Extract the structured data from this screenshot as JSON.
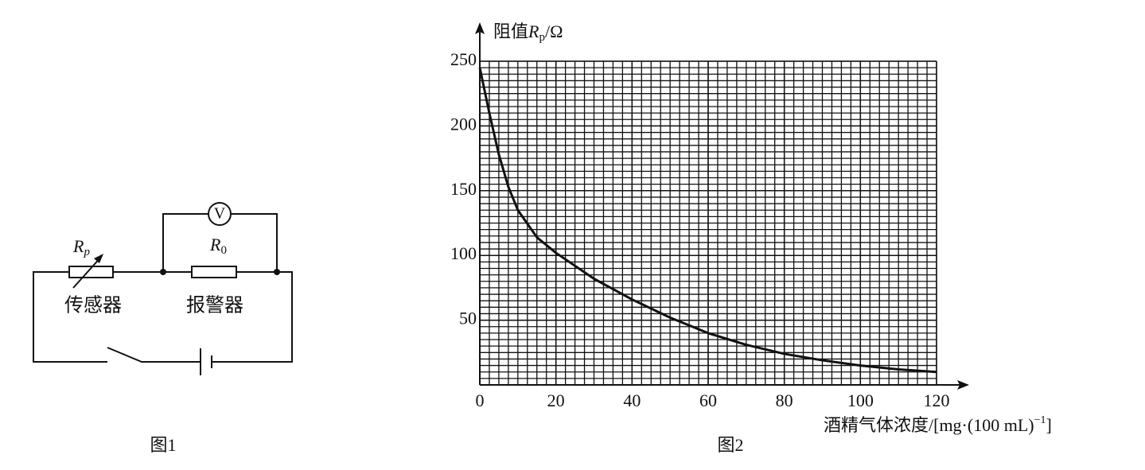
{
  "chart_data": {
    "type": "line",
    "ylabel": [
      "阻值",
      "R",
      "p",
      "/Ω"
    ],
    "xlabel": [
      "酒精气体浓度/[mg·(100 mL)",
      "−1",
      "]"
    ],
    "caption": "图2",
    "x": [
      0,
      2.5,
      5,
      7.5,
      10,
      15,
      20,
      30,
      40,
      50,
      60,
      70,
      80,
      90,
      100,
      110,
      120
    ],
    "values": [
      245,
      210,
      178,
      153,
      135,
      114,
      102,
      82,
      66,
      52,
      40,
      31,
      24,
      19,
      15,
      12,
      10
    ],
    "color": "#111111",
    "xlim": [
      0,
      120
    ],
    "ylim": [
      0,
      250
    ],
    "xticks": [
      0,
      20,
      40,
      60,
      80,
      100,
      120
    ],
    "yticks": [
      50,
      100,
      150,
      200,
      250
    ],
    "grid": {
      "x_step": 2.5,
      "y_step": 5
    }
  },
  "diagram": {
    "rp_symbol": "R",
    "rp_sub": "p",
    "r0_symbol": "R",
    "r0_sub": "0",
    "meter": "V",
    "sensor": "传感器",
    "alarm": "报警器",
    "caption": "图1"
  }
}
